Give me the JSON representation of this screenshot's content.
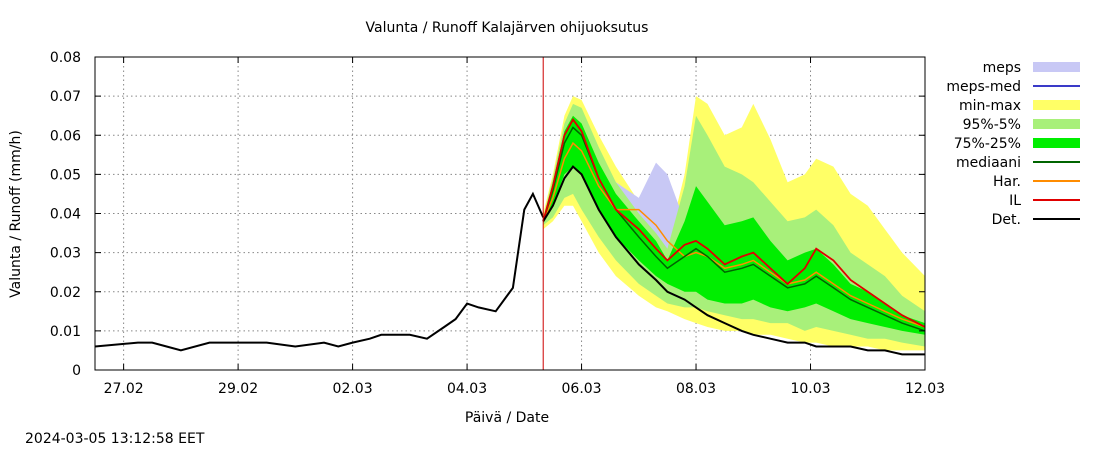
{
  "chart_data": {
    "type": "area",
    "title": "Valunta / Runoff  Kalajärven ohijuoksutus",
    "xlabel": "Päivä / Date",
    "ylabel": "Valunta / Runoff (mm/h)",
    "timestamp": "2024-03-05 13:12:58 EET",
    "x_unit": "days since 2024-02-26 00:00",
    "xlim": [
      0.5,
      15.0
    ],
    "ylim": [
      0,
      0.08
    ],
    "forecast_start": 8.33,
    "x_ticks": [
      {
        "x": 1,
        "label": "27.02"
      },
      {
        "x": 3,
        "label": "29.02"
      },
      {
        "x": 5,
        "label": "02.03"
      },
      {
        "x": 7,
        "label": "04.03"
      },
      {
        "x": 9,
        "label": "06.03"
      },
      {
        "x": 11,
        "label": "08.03"
      },
      {
        "x": 13,
        "label": "10.03"
      },
      {
        "x": 15,
        "label": "12.03"
      }
    ],
    "y_ticks": [
      {
        "y": 0,
        "label": "0"
      },
      {
        "y": 0.01,
        "label": "0.01"
      },
      {
        "y": 0.02,
        "label": "0.02"
      },
      {
        "y": 0.03,
        "label": "0.03"
      },
      {
        "y": 0.04,
        "label": "0.04"
      },
      {
        "y": 0.05,
        "label": "0.05"
      },
      {
        "y": 0.06,
        "label": "0.06"
      },
      {
        "y": 0.07,
        "label": "0.07"
      },
      {
        "y": 0.08,
        "label": "0.08"
      }
    ],
    "legend": [
      {
        "key": "meps",
        "label": "meps",
        "kind": "band",
        "color": "#c8c8f5"
      },
      {
        "key": "meps_med",
        "label": "meps-med",
        "kind": "line",
        "color": "#3a3ac8"
      },
      {
        "key": "minmax",
        "label": "min-max",
        "kind": "band",
        "color": "#ffff66"
      },
      {
        "key": "p95_5",
        "label": "95%-5%",
        "kind": "band",
        "color": "#a8f07a"
      },
      {
        "key": "p75_25",
        "label": "75%-25%",
        "kind": "band",
        "color": "#00ee00"
      },
      {
        "key": "mediaani",
        "label": "mediaani",
        "kind": "line",
        "color": "#006400"
      },
      {
        "key": "har",
        "label": "Har.",
        "kind": "line",
        "color": "#ff8c00"
      },
      {
        "key": "il",
        "label": "IL",
        "kind": "line",
        "color": "#e00000"
      },
      {
        "key": "det",
        "label": "Det.",
        "kind": "line",
        "color": "#000000"
      }
    ],
    "forecast_x": [
      8.33,
      8.5,
      8.7,
      8.85,
      9.0,
      9.3,
      9.6,
      10.0,
      10.3,
      10.5,
      10.8,
      11.0,
      11.2,
      11.5,
      11.8,
      12.0,
      12.3,
      12.6,
      12.9,
      13.1,
      13.4,
      13.7,
      14.0,
      14.3,
      14.6,
      15.0
    ],
    "series": [
      {
        "name": "min-max upper",
        "key": "minmax_hi",
        "values": [
          0.04,
          0.05,
          0.065,
          0.07,
          0.069,
          0.06,
          0.052,
          0.043,
          0.037,
          0.032,
          0.05,
          0.07,
          0.068,
          0.06,
          0.062,
          0.068,
          0.059,
          0.048,
          0.05,
          0.054,
          0.052,
          0.045,
          0.042,
          0.036,
          0.03,
          0.024
        ]
      },
      {
        "name": "min-max lower",
        "key": "minmax_lo",
        "values": [
          0.036,
          0.038,
          0.042,
          0.042,
          0.038,
          0.03,
          0.024,
          0.019,
          0.016,
          0.015,
          0.013,
          0.012,
          0.011,
          0.01,
          0.01,
          0.009,
          0.009,
          0.008,
          0.007,
          0.007,
          0.006,
          0.006,
          0.006,
          0.005,
          0.005,
          0.005
        ]
      },
      {
        "name": "95%-5% upper",
        "key": "p95_hi",
        "values": [
          0.039,
          0.049,
          0.063,
          0.068,
          0.067,
          0.057,
          0.048,
          0.04,
          0.035,
          0.031,
          0.047,
          0.065,
          0.06,
          0.052,
          0.05,
          0.048,
          0.043,
          0.038,
          0.039,
          0.041,
          0.037,
          0.03,
          0.027,
          0.024,
          0.019,
          0.015
        ]
      },
      {
        "name": "95%-5% lower",
        "key": "p95_lo",
        "values": [
          0.037,
          0.039,
          0.044,
          0.045,
          0.041,
          0.034,
          0.028,
          0.022,
          0.019,
          0.017,
          0.016,
          0.016,
          0.015,
          0.014,
          0.013,
          0.013,
          0.012,
          0.012,
          0.01,
          0.011,
          0.01,
          0.009,
          0.008,
          0.008,
          0.007,
          0.006
        ]
      },
      {
        "name": "75%-25% upper",
        "key": "p75_hi",
        "values": [
          0.0385,
          0.048,
          0.061,
          0.065,
          0.063,
          0.053,
          0.045,
          0.038,
          0.033,
          0.028,
          0.038,
          0.047,
          0.043,
          0.037,
          0.038,
          0.039,
          0.033,
          0.028,
          0.03,
          0.031,
          0.027,
          0.022,
          0.02,
          0.017,
          0.014,
          0.012
        ]
      },
      {
        "name": "75%-25% lower",
        "key": "p75_lo",
        "values": [
          0.0375,
          0.042,
          0.05,
          0.052,
          0.05,
          0.041,
          0.034,
          0.028,
          0.024,
          0.022,
          0.02,
          0.02,
          0.018,
          0.017,
          0.017,
          0.018,
          0.016,
          0.015,
          0.016,
          0.017,
          0.015,
          0.013,
          0.012,
          0.011,
          0.01,
          0.009
        ]
      },
      {
        "name": "meps upper",
        "key": "meps_hi",
        "values": [
          0.039,
          0.048,
          0.061,
          0.065,
          0.063,
          0.055,
          0.048,
          0.044,
          0.053,
          0.05,
          0.038,
          null,
          null,
          null,
          null,
          null,
          null,
          null,
          null,
          null,
          null,
          null,
          null,
          null,
          null,
          null
        ]
      },
      {
        "name": "meps lower",
        "key": "meps_lo",
        "values": [
          0.038,
          0.044,
          0.055,
          0.06,
          0.058,
          0.05,
          0.042,
          0.036,
          0.033,
          0.031,
          0.03,
          null,
          null,
          null,
          null,
          null,
          null,
          null,
          null,
          null,
          null,
          null,
          null,
          null,
          null,
          null
        ]
      },
      {
        "name": "mediaani",
        "key": "mediaani",
        "values": [
          0.038,
          0.046,
          0.058,
          0.062,
          0.06,
          0.049,
          0.041,
          0.034,
          0.029,
          0.026,
          0.029,
          0.031,
          0.029,
          0.025,
          0.026,
          0.027,
          0.024,
          0.021,
          0.022,
          0.024,
          0.021,
          0.018,
          0.016,
          0.014,
          0.012,
          0.01
        ]
      },
      {
        "name": "Har.",
        "key": "har",
        "values": [
          0.038,
          0.044,
          0.054,
          0.058,
          0.056,
          0.047,
          0.041,
          0.041,
          0.037,
          0.033,
          0.029,
          0.03,
          0.029,
          0.026,
          0.027,
          0.028,
          0.025,
          0.022,
          0.023,
          0.025,
          0.022,
          0.019,
          0.017,
          0.015,
          0.013,
          0.011
        ]
      },
      {
        "name": "IL",
        "key": "il",
        "values": [
          0.038,
          0.047,
          0.06,
          0.064,
          0.061,
          0.049,
          0.041,
          0.036,
          0.031,
          0.028,
          0.032,
          0.033,
          0.031,
          0.027,
          0.029,
          0.03,
          0.026,
          0.022,
          0.026,
          0.031,
          0.028,
          0.023,
          0.02,
          0.017,
          0.014,
          0.011
        ]
      },
      {
        "name": "Det.",
        "key": "det_forecast",
        "values": [
          0.038,
          0.042,
          0.049,
          0.052,
          0.05,
          0.041,
          0.034,
          0.027,
          0.023,
          0.02,
          0.018,
          0.016,
          0.014,
          0.012,
          0.01,
          0.009,
          0.008,
          0.007,
          0.007,
          0.006,
          0.006,
          0.006,
          0.005,
          0.005,
          0.004,
          0.004
        ]
      }
    ],
    "observed_x": [
      0.5,
      1.25,
      1.5,
      1.75,
      2.0,
      2.5,
      2.75,
      3.5,
      4.0,
      4.5,
      4.75,
      5.0,
      5.3,
      5.5,
      5.75,
      6.0,
      6.3,
      6.6,
      6.8,
      7.0,
      7.2,
      7.5,
      7.8,
      8.0,
      8.15,
      8.33
    ],
    "observed_det": [
      0.006,
      0.007,
      0.007,
      0.006,
      0.005,
      0.007,
      0.007,
      0.007,
      0.006,
      0.007,
      0.006,
      0.007,
      0.008,
      0.009,
      0.009,
      0.009,
      0.008,
      0.011,
      0.013,
      0.017,
      0.016,
      0.015,
      0.021,
      0.041,
      0.045,
      0.039
    ]
  }
}
